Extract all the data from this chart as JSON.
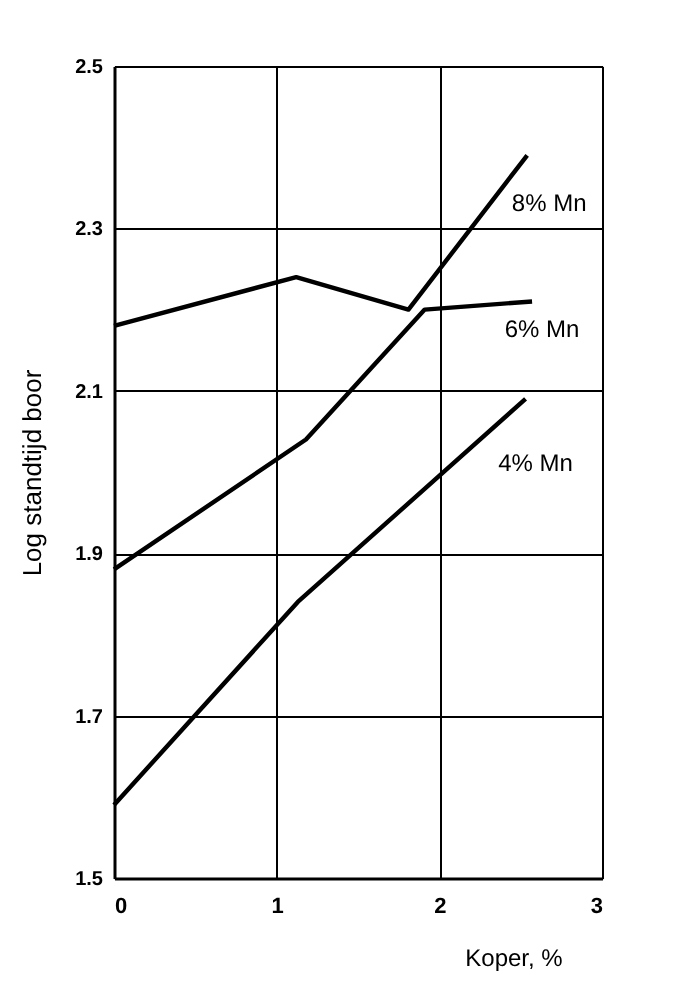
{
  "chart_data": {
    "type": "line",
    "xlabel": "Koper, %",
    "ylabel": "Log standtijd boor",
    "xlim": [
      0,
      3
    ],
    "xticks": [
      0,
      1,
      2,
      3
    ],
    "ylim": [
      1.5,
      2.5
    ],
    "yticks": [
      1.5,
      1.7,
      1.9,
      2.1,
      2.3,
      2.5
    ],
    "grid": true,
    "marker": "none",
    "line_style": "solid",
    "series": [
      {
        "name": "8% Mn",
        "color": "#000000",
        "x": [
          0,
          1.12,
          1.81,
          2.54
        ],
        "values": [
          2.18,
          2.24,
          2.2,
          2.39
        ]
      },
      {
        "name": "6% Mn",
        "color": "#000000",
        "x": [
          0,
          1.18,
          1.91,
          2.57
        ],
        "values": [
          1.88,
          2.04,
          2.2,
          2.21
        ]
      },
      {
        "name": "4% Mn",
        "color": "#000000",
        "x": [
          0,
          1.13,
          2.53
        ],
        "values": [
          1.59,
          1.84,
          2.09
        ]
      }
    ]
  }
}
